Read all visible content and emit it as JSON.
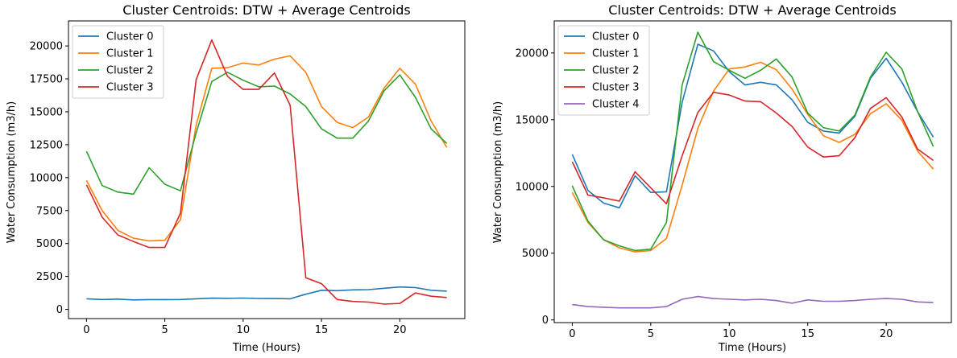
{
  "figure_background": "#ffffff",
  "chart_data": [
    {
      "type": "line",
      "title": "Cluster Centroids: DTW + Average Centroids",
      "xlabel": "Time (Hours)",
      "ylabel": "Water Consumption (m3/h)",
      "xlim": [
        -1.15,
        24.15
      ],
      "ylim": [
        -700,
        21900
      ],
      "xticks": [
        0,
        5,
        10,
        15,
        20
      ],
      "yticks": [
        0,
        2500,
        5000,
        7500,
        10000,
        12500,
        15000,
        17500,
        20000
      ],
      "grid": false,
      "legend_position": "top-left",
      "x": [
        0,
        1,
        2,
        3,
        4,
        5,
        6,
        7,
        8,
        9,
        10,
        11,
        12,
        13,
        14,
        15,
        16,
        17,
        18,
        19,
        20,
        21,
        22,
        23
      ],
      "series": [
        {
          "name": "Cluster 0",
          "color": "#1f77b4",
          "values": [
            800,
            750,
            780,
            720,
            740,
            740,
            750,
            800,
            850,
            840,
            860,
            830,
            820,
            800,
            1150,
            1450,
            1420,
            1480,
            1500,
            1600,
            1700,
            1650,
            1450,
            1380
          ]
        },
        {
          "name": "Cluster 1",
          "color": "#ff7f0e",
          "values": [
            9800,
            7500,
            6000,
            5400,
            5200,
            5250,
            6800,
            14000,
            18300,
            18350,
            18700,
            18550,
            19000,
            19250,
            18000,
            15400,
            14200,
            13800,
            14600,
            16800,
            18300,
            17100,
            14300,
            12300
          ]
        },
        {
          "name": "Cluster 2",
          "color": "#2ca02c",
          "values": [
            12000,
            9400,
            8900,
            8750,
            10750,
            9500,
            9000,
            13400,
            17300,
            18000,
            17400,
            16900,
            16950,
            16350,
            15400,
            13700,
            13000,
            13000,
            14300,
            16600,
            17800,
            16100,
            13700,
            12600
          ]
        },
        {
          "name": "Cluster 3",
          "color": "#d62728",
          "values": [
            9450,
            7000,
            5650,
            5150,
            4700,
            4700,
            7300,
            17450,
            20450,
            17700,
            16700,
            16700,
            17950,
            15500,
            2400,
            1950,
            750,
            600,
            550,
            400,
            450,
            1250,
            1000,
            900
          ]
        }
      ]
    },
    {
      "type": "line",
      "title": "Cluster Centroids: DTW + Average Centroids",
      "xlabel": "Time (Hours)",
      "ylabel": "Water Consumption (m3/h)",
      "xlim": [
        -1.15,
        24.15
      ],
      "ylim": [
        -200,
        22400
      ],
      "xticks": [
        0,
        5,
        10,
        15,
        20
      ],
      "yticks": [
        0,
        5000,
        10000,
        15000,
        20000
      ],
      "grid": false,
      "legend_position": "top-left",
      "x": [
        0,
        1,
        2,
        3,
        4,
        5,
        6,
        7,
        8,
        9,
        10,
        11,
        12,
        13,
        14,
        15,
        16,
        17,
        18,
        19,
        20,
        21,
        22,
        23
      ],
      "series": [
        {
          "name": "Cluster 0",
          "color": "#1f77b4",
          "values": [
            12400,
            9700,
            8750,
            8400,
            10800,
            9550,
            9600,
            16300,
            20650,
            20150,
            18600,
            17600,
            17800,
            17600,
            16500,
            14800,
            14150,
            14000,
            15250,
            18100,
            19600,
            17800,
            15600,
            13700
          ]
        },
        {
          "name": "Cluster 1",
          "color": "#ff7f0e",
          "values": [
            9550,
            7300,
            6000,
            5400,
            5100,
            5200,
            6100,
            10100,
            14350,
            17150,
            18800,
            18950,
            19300,
            18750,
            17300,
            15400,
            13800,
            13300,
            13900,
            15450,
            16200,
            14950,
            12650,
            11300
          ]
        },
        {
          "name": "Cluster 2",
          "color": "#2ca02c",
          "values": [
            10050,
            7400,
            6000,
            5550,
            5200,
            5300,
            7300,
            17600,
            21550,
            19350,
            18700,
            18100,
            18700,
            19550,
            18200,
            15500,
            14400,
            14150,
            15350,
            18200,
            20050,
            18800,
            15600,
            13000
          ]
        },
        {
          "name": "Cluster 3",
          "color": "#d62728",
          "values": [
            11850,
            9350,
            9150,
            8900,
            11100,
            9900,
            8700,
            12300,
            15550,
            17050,
            16850,
            16400,
            16350,
            15500,
            14500,
            12950,
            12200,
            12300,
            13650,
            15850,
            16650,
            15200,
            12800,
            11950
          ]
        },
        {
          "name": "Cluster 4",
          "color": "#9467bd",
          "values": [
            1150,
            1000,
            950,
            900,
            900,
            900,
            1000,
            1550,
            1750,
            1600,
            1550,
            1500,
            1550,
            1450,
            1250,
            1500,
            1400,
            1400,
            1450,
            1550,
            1600,
            1550,
            1350,
            1300
          ]
        }
      ]
    }
  ]
}
